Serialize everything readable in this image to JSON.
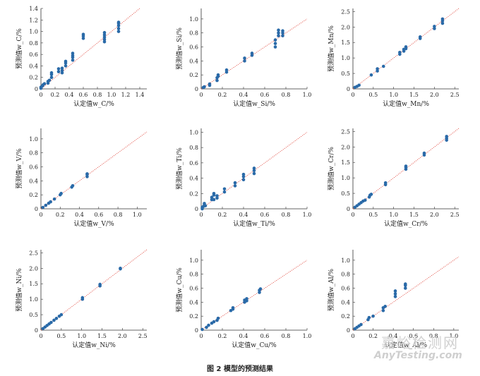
{
  "caption": "图 2   模型的预测结果",
  "watermark": {
    "brand": "嘉峪检测网",
    "site": "AnyTesting.com"
  },
  "chart_data": [
    {
      "type": "scatter",
      "element": "C",
      "xlabel": "认定值w_C/%",
      "ylabel": "预测值w_C/%",
      "xlim": [
        0,
        1.5
      ],
      "ylim": [
        0,
        1.4
      ],
      "xticks": [
        "0",
        "0.2",
        "0.4",
        "0.6",
        "0.8",
        "1.0",
        "1.2",
        "1.4"
      ],
      "xtickvals": [
        0,
        0.2,
        0.4,
        0.6,
        0.8,
        1.0,
        1.2,
        1.4
      ],
      "yticks": [
        "0",
        "0.2",
        "0.4",
        "0.6",
        "0.8",
        "1.0",
        "1.2",
        "1.4"
      ],
      "ytickvals": [
        0,
        0.2,
        0.4,
        0.6,
        0.8,
        1.0,
        1.2,
        1.4
      ],
      "points": [
        [
          0.0,
          0.01
        ],
        [
          0.0,
          0.03
        ],
        [
          0.02,
          0.05
        ],
        [
          0.03,
          0.07
        ],
        [
          0.05,
          0.09
        ],
        [
          0.1,
          0.1
        ],
        [
          0.1,
          0.13
        ],
        [
          0.12,
          0.15
        ],
        [
          0.15,
          0.2
        ],
        [
          0.15,
          0.25
        ],
        [
          0.15,
          0.28
        ],
        [
          0.25,
          0.3
        ],
        [
          0.25,
          0.35
        ],
        [
          0.3,
          0.28
        ],
        [
          0.3,
          0.32
        ],
        [
          0.3,
          0.36
        ],
        [
          0.35,
          0.4
        ],
        [
          0.35,
          0.45
        ],
        [
          0.35,
          0.48
        ],
        [
          0.45,
          0.5
        ],
        [
          0.45,
          0.55
        ],
        [
          0.45,
          0.58
        ],
        [
          0.45,
          0.62
        ],
        [
          0.6,
          0.88
        ],
        [
          0.6,
          0.92
        ],
        [
          0.6,
          0.95
        ],
        [
          0.9,
          0.82
        ],
        [
          0.9,
          0.86
        ],
        [
          0.9,
          0.9
        ],
        [
          0.9,
          0.94
        ],
        [
          0.9,
          0.98
        ],
        [
          1.1,
          1.0
        ],
        [
          1.1,
          1.05
        ],
        [
          1.1,
          1.1
        ],
        [
          1.1,
          1.14
        ],
        [
          1.1,
          1.16
        ]
      ]
    },
    {
      "type": "scatter",
      "element": "Si",
      "xlabel": "认定值w_Si/%",
      "ylabel": "预测值w_Si/%",
      "xlim": [
        0,
        1.0
      ],
      "ylim": [
        0,
        1.15
      ],
      "xticks": [
        "0",
        "0.2",
        "0.4",
        "0.6",
        "0.8",
        "1.0"
      ],
      "xtickvals": [
        0,
        0.2,
        0.4,
        0.6,
        0.8,
        1.0
      ],
      "yticks": [
        "0",
        "0.2",
        "0.4",
        "0.6",
        "0.8",
        "1.0"
      ],
      "ytickvals": [
        0,
        0.2,
        0.4,
        0.6,
        0.8,
        1.0
      ],
      "points": [
        [
          0.02,
          0.02
        ],
        [
          0.03,
          0.03
        ],
        [
          0.08,
          0.05
        ],
        [
          0.08,
          0.07
        ],
        [
          0.15,
          0.12
        ],
        [
          0.15,
          0.16
        ],
        [
          0.16,
          0.18
        ],
        [
          0.16,
          0.2
        ],
        [
          0.24,
          0.24
        ],
        [
          0.24,
          0.27
        ],
        [
          0.41,
          0.4
        ],
        [
          0.41,
          0.44
        ],
        [
          0.48,
          0.48
        ],
        [
          0.48,
          0.51
        ],
        [
          0.7,
          0.6
        ],
        [
          0.7,
          0.65
        ],
        [
          0.7,
          0.7
        ],
        [
          0.73,
          0.76
        ],
        [
          0.73,
          0.8
        ],
        [
          0.73,
          0.84
        ],
        [
          0.77,
          0.76
        ],
        [
          0.77,
          0.8
        ],
        [
          0.77,
          0.83
        ]
      ]
    },
    {
      "type": "scatter",
      "element": "Mn",
      "xlabel": "认定值w_Mn/%",
      "ylabel": "预测值w_Mn/%",
      "xlim": [
        0,
        2.6
      ],
      "ylim": [
        0,
        2.6
      ],
      "xticks": [
        "0",
        "0.5",
        "1.0",
        "1.5",
        "2.0",
        "2.5"
      ],
      "xtickvals": [
        0,
        0.5,
        1.0,
        1.5,
        2.0,
        2.5
      ],
      "yticks": [
        "0",
        "0.5",
        "1.0",
        "1.5",
        "2.0",
        "2.5"
      ],
      "ytickvals": [
        0,
        0.5,
        1.0,
        1.5,
        2.0,
        2.5
      ],
      "points": [
        [
          0.05,
          0.05
        ],
        [
          0.1,
          0.08
        ],
        [
          0.15,
          0.12
        ],
        [
          0.45,
          0.45
        ],
        [
          0.6,
          0.58
        ],
        [
          0.6,
          0.65
        ],
        [
          0.75,
          0.73
        ],
        [
          1.15,
          1.12
        ],
        [
          1.15,
          1.18
        ],
        [
          1.25,
          1.22
        ],
        [
          1.25,
          1.28
        ],
        [
          1.3,
          1.3
        ],
        [
          1.3,
          1.36
        ],
        [
          1.65,
          1.63
        ],
        [
          1.65,
          1.68
        ],
        [
          2.0,
          1.95
        ],
        [
          2.0,
          2.02
        ],
        [
          2.2,
          2.12
        ],
        [
          2.2,
          2.2
        ],
        [
          2.2,
          2.26
        ]
      ]
    },
    {
      "type": "scatter",
      "element": "V",
      "xlabel": "认定值w_V/%",
      "ylabel": "预测值w_V/%",
      "xlim": [
        0,
        1.1
      ],
      "ylim": [
        0,
        1.15
      ],
      "xticks": [
        "0",
        "0.2",
        "0.4",
        "0.6",
        "0.8",
        "1.0"
      ],
      "xtickvals": [
        0,
        0.2,
        0.4,
        0.6,
        0.8,
        1.0
      ],
      "yticks": [
        "0",
        "0.2",
        "0.4",
        "0.6",
        "0.8",
        "1.0"
      ],
      "ytickvals": [
        0,
        0.2,
        0.4,
        0.6,
        0.8,
        1.0
      ],
      "points": [
        [
          0.02,
          0.02
        ],
        [
          0.05,
          0.05
        ],
        [
          0.08,
          0.08
        ],
        [
          0.1,
          0.1
        ],
        [
          0.14,
          0.14
        ],
        [
          0.2,
          0.2
        ],
        [
          0.21,
          0.22
        ],
        [
          0.32,
          0.31
        ],
        [
          0.33,
          0.33
        ],
        [
          0.48,
          0.46
        ],
        [
          0.48,
          0.49
        ],
        [
          0.48,
          0.5
        ]
      ]
    },
    {
      "type": "scatter",
      "element": "Ti",
      "xlabel": "认定值w_Ti/%",
      "ylabel": "预测值w_Ti/%",
      "xlim": [
        0,
        1.0
      ],
      "ylim": [
        0,
        1.05
      ],
      "xticks": [
        "0",
        "0.2",
        "0.4",
        "0.6",
        "0.8",
        "1.0"
      ],
      "xtickvals": [
        0,
        0.2,
        0.4,
        0.6,
        0.8,
        1.0
      ],
      "yticks": [
        "0",
        "0.2",
        "0.4",
        "0.6",
        "0.8",
        "1.0"
      ],
      "ytickvals": [
        0,
        0.2,
        0.4,
        0.6,
        0.8,
        1.0
      ],
      "points": [
        [
          0.01,
          0.0
        ],
        [
          0.01,
          0.02
        ],
        [
          0.02,
          0.03
        ],
        [
          0.03,
          0.05
        ],
        [
          0.03,
          0.07
        ],
        [
          0.04,
          0.04
        ],
        [
          0.1,
          0.12
        ],
        [
          0.1,
          0.15
        ],
        [
          0.12,
          0.12
        ],
        [
          0.12,
          0.18
        ],
        [
          0.12,
          0.2
        ],
        [
          0.15,
          0.14
        ],
        [
          0.15,
          0.17
        ],
        [
          0.22,
          0.22
        ],
        [
          0.22,
          0.26
        ],
        [
          0.32,
          0.3
        ],
        [
          0.32,
          0.34
        ],
        [
          0.4,
          0.38
        ],
        [
          0.4,
          0.42
        ],
        [
          0.4,
          0.45
        ],
        [
          0.5,
          0.46
        ],
        [
          0.5,
          0.5
        ],
        [
          0.5,
          0.53
        ]
      ]
    },
    {
      "type": "scatter",
      "element": "Cr",
      "xlabel": "认定值w_Cr/%",
      "ylabel": "预测值w_Cr/%",
      "xlim": [
        0,
        2.6
      ],
      "ylim": [
        0,
        2.6
      ],
      "xticks": [
        "0",
        "0.5",
        "1.0",
        "1.5",
        "2.0",
        "2.5"
      ],
      "xtickvals": [
        0,
        0.5,
        1.0,
        1.5,
        2.0,
        2.5
      ],
      "yticks": [
        "0",
        "0.5",
        "1.0",
        "1.5",
        "2.0",
        "2.5"
      ],
      "ytickvals": [
        0,
        0.5,
        1.0,
        1.5,
        2.0,
        2.5
      ],
      "points": [
        [
          0.05,
          0.05
        ],
        [
          0.1,
          0.1
        ],
        [
          0.15,
          0.15
        ],
        [
          0.2,
          0.2
        ],
        [
          0.25,
          0.25
        ],
        [
          0.3,
          0.28
        ],
        [
          0.4,
          0.38
        ],
        [
          0.42,
          0.44
        ],
        [
          0.45,
          0.47
        ],
        [
          0.8,
          0.78
        ],
        [
          0.8,
          0.84
        ],
        [
          1.3,
          1.28
        ],
        [
          1.3,
          1.34
        ],
        [
          1.3,
          1.38
        ],
        [
          1.75,
          1.74
        ],
        [
          1.75,
          1.8
        ],
        [
          2.3,
          2.22
        ],
        [
          2.3,
          2.28
        ],
        [
          2.3,
          2.34
        ]
      ]
    },
    {
      "type": "scatter",
      "element": "Ni",
      "xlabel": "认定值w_Ni/%",
      "ylabel": "预测值w_Ni/%",
      "xlim": [
        0,
        2.6
      ],
      "ylim": [
        0,
        2.6
      ],
      "xticks": [
        "0",
        "0.5",
        "1.0",
        "1.5",
        "2.0",
        "2.5"
      ],
      "xtickvals": [
        0,
        0.5,
        1.0,
        1.5,
        2.0,
        2.5
      ],
      "yticks": [
        "0",
        "0.5",
        "1.0",
        "1.5",
        "2.0",
        "2.5"
      ],
      "ytickvals": [
        0,
        0.5,
        1.0,
        1.5,
        2.0,
        2.5
      ],
      "points": [
        [
          0.05,
          0.05
        ],
        [
          0.1,
          0.1
        ],
        [
          0.15,
          0.15
        ],
        [
          0.2,
          0.2
        ],
        [
          0.25,
          0.25
        ],
        [
          0.32,
          0.32
        ],
        [
          0.38,
          0.38
        ],
        [
          0.45,
          0.45
        ],
        [
          0.5,
          0.5
        ],
        [
          1.02,
          1.0
        ],
        [
          1.02,
          1.05
        ],
        [
          1.45,
          1.43
        ],
        [
          1.45,
          1.48
        ],
        [
          1.95,
          1.98
        ],
        [
          1.95,
          2.0
        ]
      ]
    },
    {
      "type": "scatter",
      "element": "Cu",
      "xlabel": "认定值w_Cu/%",
      "ylabel": "预测值w_Cu/%",
      "xlim": [
        0,
        1.0
      ],
      "ylim": [
        0,
        1.15
      ],
      "xticks": [
        "0",
        "0.2",
        "0.4",
        "0.6",
        "0.8",
        "1.0"
      ],
      "xtickvals": [
        0,
        0.2,
        0.4,
        0.6,
        0.8,
        1.0
      ],
      "yticks": [
        "0",
        "0.2",
        "0.4",
        "0.6",
        "0.8",
        "1.0"
      ],
      "ytickvals": [
        0,
        0.2,
        0.4,
        0.6,
        0.8,
        1.0
      ],
      "points": [
        [
          0.01,
          0.01
        ],
        [
          0.05,
          0.04
        ],
        [
          0.07,
          0.07
        ],
        [
          0.1,
          0.1
        ],
        [
          0.12,
          0.12
        ],
        [
          0.15,
          0.14
        ],
        [
          0.16,
          0.17
        ],
        [
          0.28,
          0.28
        ],
        [
          0.3,
          0.3
        ],
        [
          0.3,
          0.32
        ],
        [
          0.41,
          0.4
        ],
        [
          0.41,
          0.43
        ],
        [
          0.43,
          0.42
        ],
        [
          0.43,
          0.45
        ],
        [
          0.55,
          0.54
        ],
        [
          0.55,
          0.57
        ],
        [
          0.56,
          0.59
        ]
      ]
    },
    {
      "type": "scatter",
      "element": "Al",
      "xlabel": "认定值w_Al/%",
      "ylabel": "预测值w_Al/%",
      "xlim": [
        0,
        1.05
      ],
      "ylim": [
        0,
        1.15
      ],
      "xticks": [
        "0",
        "0.2",
        "0.4",
        "0.6",
        "0.8",
        "1.0"
      ],
      "xtickvals": [
        0,
        0.2,
        0.4,
        0.6,
        0.8,
        1.0
      ],
      "yticks": [
        "0",
        "0.2",
        "0.4",
        "0.6",
        "0.8",
        "1.0"
      ],
      "ytickvals": [
        0,
        0.2,
        0.4,
        0.6,
        0.8,
        1.0
      ],
      "points": [
        [
          0.02,
          0.02
        ],
        [
          0.04,
          0.04
        ],
        [
          0.06,
          0.06
        ],
        [
          0.08,
          0.08
        ],
        [
          0.15,
          0.15
        ],
        [
          0.16,
          0.18
        ],
        [
          0.2,
          0.2
        ],
        [
          0.3,
          0.28
        ],
        [
          0.3,
          0.32
        ],
        [
          0.32,
          0.34
        ],
        [
          0.42,
          0.48
        ],
        [
          0.42,
          0.52
        ],
        [
          0.42,
          0.56
        ],
        [
          0.52,
          0.6
        ],
        [
          0.52,
          0.64
        ],
        [
          0.52,
          0.66
        ]
      ]
    }
  ]
}
